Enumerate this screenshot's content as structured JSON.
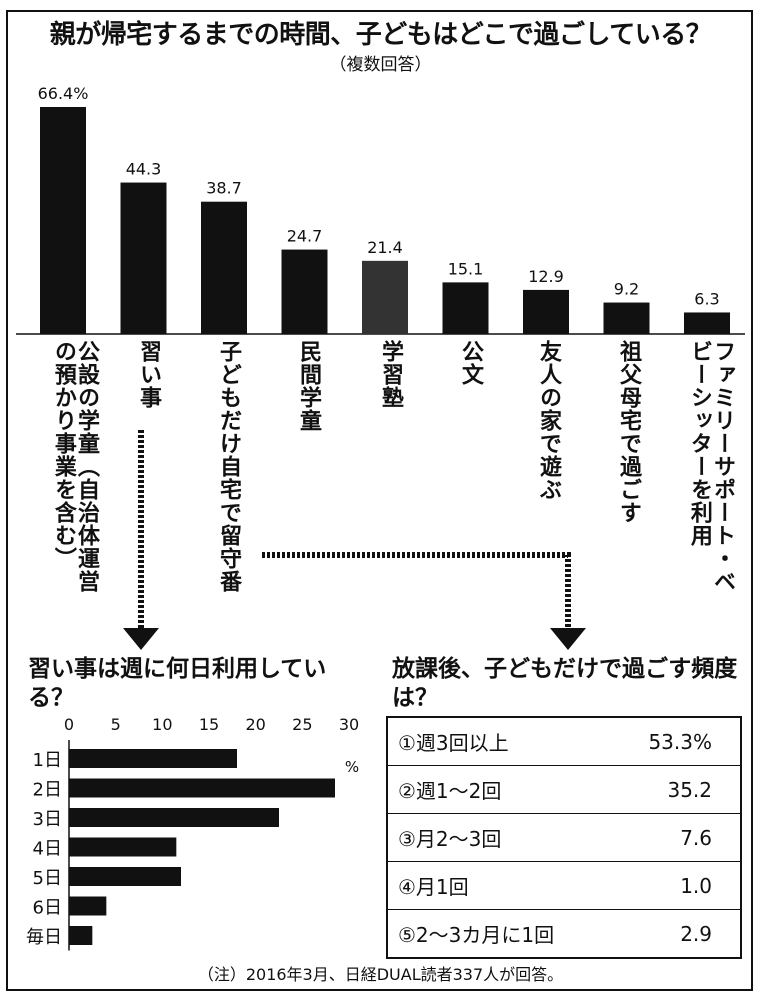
{
  "title": "親が帰宅するまでの時間、子どもはどこで過ごしている？",
  "subtitle": "（複数回答）",
  "chart_data": [
    {
      "type": "bar",
      "title": "親が帰宅するまでの時間、子どもはどこで過ごしている？",
      "subtitle": "（複数回答）",
      "categories": [
        "公設の学童（自治体運営の預かり事業を含む）",
        "習い事",
        "子どもだけ自宅で留守番",
        "民間学童",
        "学習塾",
        "公文",
        "友人の家で遊ぶ",
        "祖父母宅で過ごす",
        "ファミリーサポート・ベビーシッターを利用"
      ],
      "values": [
        66.4,
        44.3,
        38.7,
        24.7,
        21.4,
        15.1,
        12.9,
        9.2,
        6.3
      ],
      "value_labels": [
        "66.4%",
        "44.3",
        "38.7",
        "24.7",
        "21.4",
        "15.1",
        "12.9",
        "9.2",
        "6.3"
      ],
      "ylim": [
        0,
        70
      ]
    },
    {
      "type": "bar",
      "orientation": "horizontal",
      "title": "習い事は週に何日利用している？",
      "categories": [
        "1日",
        "2日",
        "3日",
        "4日",
        "5日",
        "6日",
        "毎日"
      ],
      "values": [
        18,
        28.5,
        22.5,
        11.5,
        12,
        4,
        2.5
      ],
      "xlim": [
        0,
        30
      ],
      "xticks": [
        "0",
        "5",
        "10",
        "15",
        "20",
        "25",
        "30"
      ],
      "unit": "%"
    },
    {
      "type": "table",
      "title": "放課後、子どもだけで過ごす頻度は？",
      "rows": [
        {
          "label": "①週3回以上",
          "value": "53.3%"
        },
        {
          "label": "②週1～2回",
          "value": "35.2"
        },
        {
          "label": "③月2～3回",
          "value": "7.6"
        },
        {
          "label": "④月1回",
          "value": "1.0"
        },
        {
          "label": "⑤2～3カ月に1回",
          "value": "2.9"
        }
      ]
    }
  ],
  "note": "（注）2016年3月、日経DUAL読者337人が回答。",
  "colors": {
    "bar": "#111111",
    "bar_dotted": "#333333"
  }
}
